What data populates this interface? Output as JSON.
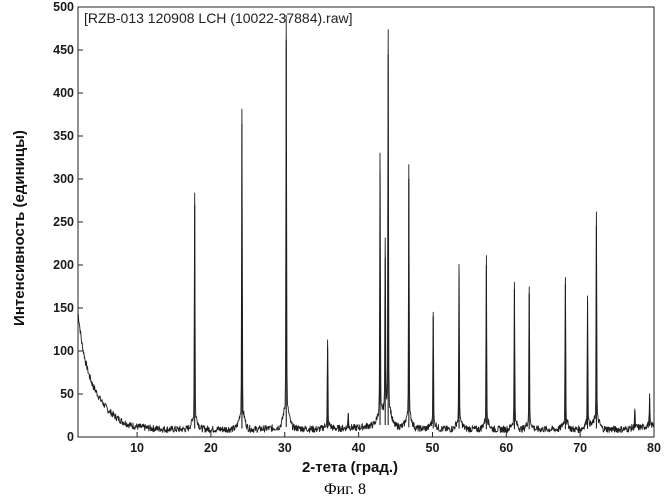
{
  "chart_data": {
    "type": "line",
    "legend": "[RZB-013 120908 LCH (10022-37884).raw]",
    "xlabel": "2-тета (град.)",
    "ylabel": "Интенсивность (единицы)",
    "caption": "Фиг. 8",
    "xlim": [
      2,
      80
    ],
    "ylim": [
      0,
      500
    ],
    "x_ticks": [
      10,
      20,
      30,
      40,
      50,
      60,
      70,
      80
    ],
    "x_tick_labels": [
      "10",
      "20",
      "30",
      "40",
      "50",
      "60",
      "70",
      "80"
    ],
    "y_ticks": [
      0,
      50,
      100,
      150,
      200,
      250,
      300,
      350,
      400,
      450,
      500
    ],
    "y_tick_labels": [
      "0",
      "50",
      "100",
      "150",
      "200",
      "250",
      "300",
      "350",
      "400",
      "450",
      "500"
    ],
    "grid": false,
    "legend_position": "top-left",
    "baseline_points": [
      [
        2,
        145
      ],
      [
        2.5,
        110
      ],
      [
        3,
        88
      ],
      [
        3.5,
        72
      ],
      [
        4,
        60
      ],
      [
        5,
        44
      ],
      [
        6,
        32
      ],
      [
        7,
        24
      ],
      [
        8,
        18
      ],
      [
        9,
        14
      ],
      [
        10,
        12
      ],
      [
        12,
        10
      ],
      [
        14,
        9
      ],
      [
        16,
        9
      ],
      [
        18,
        10
      ],
      [
        20,
        9
      ],
      [
        22,
        9
      ],
      [
        24,
        10
      ],
      [
        26,
        9
      ],
      [
        28,
        10
      ],
      [
        30,
        12
      ],
      [
        32,
        10
      ],
      [
        34,
        9
      ],
      [
        36,
        10
      ],
      [
        38,
        10
      ],
      [
        40,
        11
      ],
      [
        42,
        14
      ],
      [
        44,
        14
      ],
      [
        46,
        12
      ],
      [
        48,
        10
      ],
      [
        50,
        10
      ],
      [
        52,
        9
      ],
      [
        54,
        10
      ],
      [
        56,
        9
      ],
      [
        58,
        9
      ],
      [
        60,
        9
      ],
      [
        62,
        9
      ],
      [
        64,
        9
      ],
      [
        66,
        9
      ],
      [
        68,
        9
      ],
      [
        70,
        9
      ],
      [
        72,
        10
      ],
      [
        74,
        9
      ],
      [
        76,
        9
      ],
      [
        78,
        11
      ],
      [
        80,
        13
      ]
    ],
    "peaks": [
      {
        "x": 17.8,
        "y": 270
      },
      {
        "x": 24.2,
        "y": 364
      },
      {
        "x": 30.2,
        "y": 462
      },
      {
        "x": 35.8,
        "y": 105
      },
      {
        "x": 38.6,
        "y": 28
      },
      {
        "x": 42.9,
        "y": 310
      },
      {
        "x": 43.6,
        "y": 208
      },
      {
        "x": 44.0,
        "y": 445
      },
      {
        "x": 46.8,
        "y": 300
      },
      {
        "x": 50.1,
        "y": 140
      },
      {
        "x": 53.6,
        "y": 190
      },
      {
        "x": 57.3,
        "y": 200
      },
      {
        "x": 61.1,
        "y": 172
      },
      {
        "x": 63.1,
        "y": 167
      },
      {
        "x": 68.0,
        "y": 178
      },
      {
        "x": 71.0,
        "y": 157
      },
      {
        "x": 72.2,
        "y": 246
      },
      {
        "x": 77.4,
        "y": 30
      },
      {
        "x": 79.4,
        "y": 45
      }
    ]
  }
}
